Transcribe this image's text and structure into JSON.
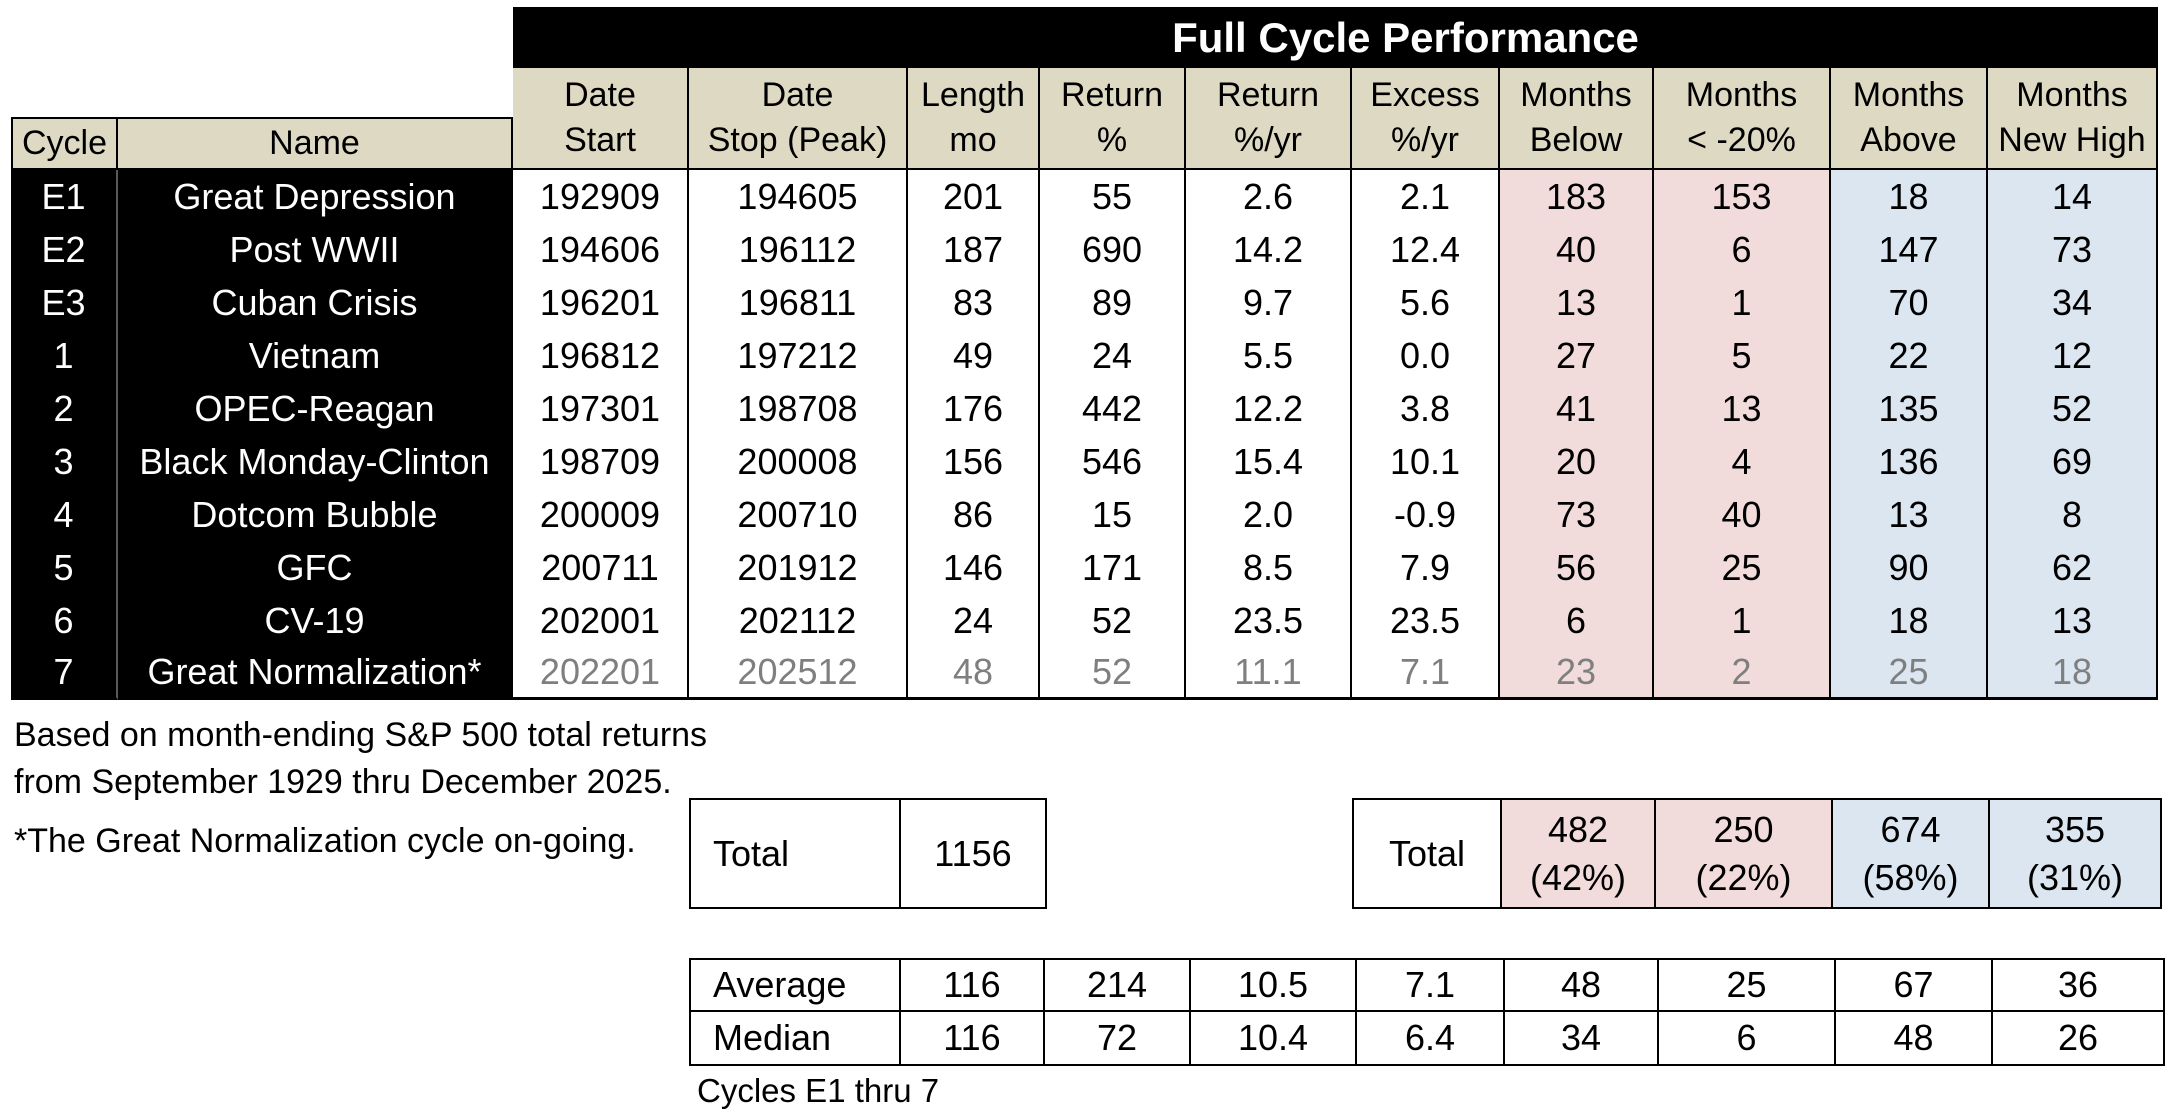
{
  "chart_data": {
    "type": "table",
    "title": "Full Cycle Performance",
    "columns": [
      {
        "line1": "Cycle"
      },
      {
        "line1": "Name"
      },
      {
        "line1": "Date",
        "line2": "Start"
      },
      {
        "line1": "Date",
        "line2": "Stop (Peak)"
      },
      {
        "line1": "Length",
        "line2": "mo"
      },
      {
        "line1": "Return",
        "line2": "%"
      },
      {
        "line1": "Return",
        "line2": "%/yr"
      },
      {
        "line1": "Excess",
        "line2": "%/yr"
      },
      {
        "line1": "Months",
        "line2": "Below"
      },
      {
        "line1": "Months",
        "line2": "< -20%"
      },
      {
        "line1": "Months",
        "line2": "Above"
      },
      {
        "line1": "Months",
        "line2": "New High"
      }
    ],
    "rows": [
      {
        "cycle": "E1",
        "name": "Great Depression",
        "values": [
          "192909",
          "194605",
          "201",
          "55",
          "2.6",
          "2.1",
          "183",
          "153",
          "18",
          "14"
        ],
        "ongoing": false
      },
      {
        "cycle": "E2",
        "name": "Post WWII",
        "values": [
          "194606",
          "196112",
          "187",
          "690",
          "14.2",
          "12.4",
          "40",
          "6",
          "147",
          "73"
        ],
        "ongoing": false
      },
      {
        "cycle": "E3",
        "name": "Cuban Crisis",
        "values": [
          "196201",
          "196811",
          "83",
          "89",
          "9.7",
          "5.6",
          "13",
          "1",
          "70",
          "34"
        ],
        "ongoing": false
      },
      {
        "cycle": "1",
        "name": "Vietnam",
        "values": [
          "196812",
          "197212",
          "49",
          "24",
          "5.5",
          "0.0",
          "27",
          "5",
          "22",
          "12"
        ],
        "ongoing": false
      },
      {
        "cycle": "2",
        "name": "OPEC-Reagan",
        "values": [
          "197301",
          "198708",
          "176",
          "442",
          "12.2",
          "3.8",
          "41",
          "13",
          "135",
          "52"
        ],
        "ongoing": false
      },
      {
        "cycle": "3",
        "name": "Black Monday-Clinton",
        "values": [
          "198709",
          "200008",
          "156",
          "546",
          "15.4",
          "10.1",
          "20",
          "4",
          "136",
          "69"
        ],
        "ongoing": false
      },
      {
        "cycle": "4",
        "name": "Dotcom Bubble",
        "values": [
          "200009",
          "200710",
          "86",
          "15",
          "2.0",
          "-0.9",
          "73",
          "40",
          "13",
          "8"
        ],
        "ongoing": false
      },
      {
        "cycle": "5",
        "name": "GFC",
        "values": [
          "200711",
          "201912",
          "146",
          "171",
          "8.5",
          "7.9",
          "56",
          "25",
          "90",
          "62"
        ],
        "ongoing": false
      },
      {
        "cycle": "6",
        "name": "CV-19",
        "values": [
          "202001",
          "202112",
          "24",
          "52",
          "23.5",
          "23.5",
          "6",
          "1",
          "18",
          "13"
        ],
        "ongoing": false
      },
      {
        "cycle": "7",
        "name": "Great Normalization*",
        "values": [
          "202201",
          "202512",
          "48",
          "52",
          "11.1",
          "7.1",
          "23",
          "2",
          "25",
          "18"
        ],
        "ongoing": true
      }
    ],
    "length_total": {
      "label": "Total",
      "value": "1156"
    },
    "months_total": {
      "label": "Total",
      "cells": [
        {
          "value": "482",
          "pct": "(42%)"
        },
        {
          "value": "250",
          "pct": "(22%)"
        },
        {
          "value": "674",
          "pct": "(58%)"
        },
        {
          "value": "355",
          "pct": "(31%)"
        }
      ]
    },
    "stats": {
      "average": {
        "label": "Average",
        "values": [
          "116",
          "214",
          "10.5",
          "7.1",
          "48",
          "25",
          "67",
          "36"
        ]
      },
      "median": {
        "label": "Median",
        "values": [
          "116",
          "72",
          "10.4",
          "6.4",
          "34",
          "6",
          "48",
          "26"
        ]
      }
    },
    "notes": [
      "Based on month-ending S&P 500 total returns",
      "from September 1929 thru December 2025.",
      "*The Great Normalization cycle on-going."
    ],
    "footnote": "Cycles E1 thru 7"
  },
  "colors": {
    "title_bg": "#000000",
    "title_text": "#ffffff",
    "header_tan": "#ddd9c3",
    "pink_highlight": "#f2dcdb",
    "blue_highlight": "#dce6f1",
    "ongoing_gray": "#7f7f7f"
  }
}
